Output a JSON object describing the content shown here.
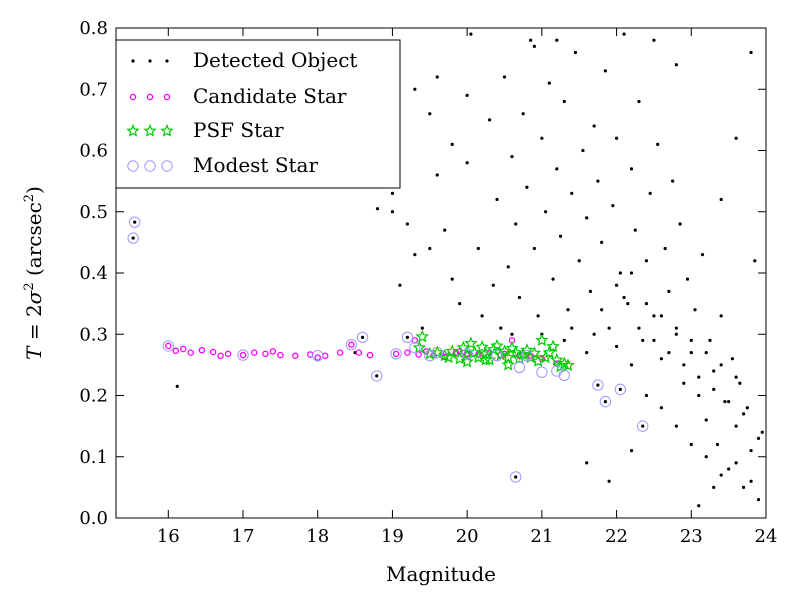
{
  "chart_data": {
    "type": "scatter",
    "xlabel": "Magnitude",
    "ylabel_parts": {
      "lead": "T",
      "eq": " = 2",
      "sigma": "σ",
      "sq": "2",
      "open": " (arcsec",
      "unit_exp": "2",
      "close": ")"
    },
    "xlim": [
      15.3,
      24.0
    ],
    "ylim": [
      0.0,
      0.8
    ],
    "x_ticks": [
      {
        "value": 16,
        "label": "16"
      },
      {
        "value": 17,
        "label": "17"
      },
      {
        "value": 18,
        "label": "18"
      },
      {
        "value": 19,
        "label": "19"
      },
      {
        "value": 20,
        "label": "20"
      },
      {
        "value": 21,
        "label": "21"
      },
      {
        "value": 22,
        "label": "22"
      },
      {
        "value": 23,
        "label": "23"
      },
      {
        "value": 24,
        "label": "24"
      }
    ],
    "y_ticks": [
      {
        "value": 0.0,
        "label": "0.0"
      },
      {
        "value": 0.1,
        "label": "0.1"
      },
      {
        "value": 0.2,
        "label": "0.2"
      },
      {
        "value": 0.3,
        "label": "0.3"
      },
      {
        "value": 0.4,
        "label": "0.4"
      },
      {
        "value": 0.5,
        "label": "0.5"
      },
      {
        "value": 0.6,
        "label": "0.6"
      },
      {
        "value": 0.7,
        "label": "0.7"
      },
      {
        "value": 0.8,
        "label": "0.8"
      }
    ],
    "grid": false,
    "legend_position": "top-left",
    "series": [
      {
        "name": "Detected Object",
        "marker": "dot",
        "color": "#000000",
        "points": [
          [
            15.53,
            0.457
          ],
          [
            15.55,
            0.483
          ],
          [
            16.12,
            0.215
          ],
          [
            18.6,
            0.295
          ],
          [
            18.79,
            0.232
          ],
          [
            18.5,
            0.27
          ],
          [
            19.2,
            0.295
          ],
          [
            20.65,
            0.067
          ],
          [
            21.75,
            0.217
          ],
          [
            21.85,
            0.19
          ],
          [
            22.05,
            0.21
          ],
          [
            22.35,
            0.15
          ],
          [
            18.8,
            0.505
          ],
          [
            19.0,
            0.53
          ],
          [
            19.2,
            0.48
          ],
          [
            19.1,
            0.38
          ],
          [
            19.4,
            0.31
          ],
          [
            19.5,
            0.44
          ],
          [
            19.6,
            0.56
          ],
          [
            19.7,
            0.47
          ],
          [
            19.8,
            0.61
          ],
          [
            19.9,
            0.35
          ],
          [
            20.0,
            0.58
          ],
          [
            20.05,
            0.79
          ],
          [
            20.15,
            0.44
          ],
          [
            20.3,
            0.65
          ],
          [
            20.35,
            0.38
          ],
          [
            20.4,
            0.52
          ],
          [
            20.45,
            0.31
          ],
          [
            20.5,
            0.72
          ],
          [
            20.55,
            0.41
          ],
          [
            20.6,
            0.59
          ],
          [
            20.65,
            0.48
          ],
          [
            20.7,
            0.36
          ],
          [
            20.75,
            0.66
          ],
          [
            20.8,
            0.54
          ],
          [
            20.85,
            0.78
          ],
          [
            20.9,
            0.44
          ],
          [
            20.95,
            0.33
          ],
          [
            21.0,
            0.62
          ],
          [
            21.05,
            0.5
          ],
          [
            21.1,
            0.71
          ],
          [
            21.15,
            0.39
          ],
          [
            21.2,
            0.57
          ],
          [
            21.25,
            0.46
          ],
          [
            21.3,
            0.68
          ],
          [
            21.35,
            0.34
          ],
          [
            21.4,
            0.53
          ],
          [
            21.45,
            0.76
          ],
          [
            21.5,
            0.42
          ],
          [
            21.55,
            0.6
          ],
          [
            21.6,
            0.49
          ],
          [
            21.65,
            0.37
          ],
          [
            21.7,
            0.64
          ],
          [
            21.75,
            0.55
          ],
          [
            21.8,
            0.45
          ],
          [
            21.85,
            0.73
          ],
          [
            21.9,
            0.31
          ],
          [
            21.95,
            0.51
          ],
          [
            22.0,
            0.62
          ],
          [
            22.05,
            0.4
          ],
          [
            22.1,
            0.79
          ],
          [
            22.15,
            0.35
          ],
          [
            22.2,
            0.57
          ],
          [
            22.25,
            0.47
          ],
          [
            22.3,
            0.68
          ],
          [
            22.35,
            0.29
          ],
          [
            22.4,
            0.42
          ],
          [
            22.45,
            0.53
          ],
          [
            22.5,
            0.33
          ],
          [
            22.55,
            0.61
          ],
          [
            22.6,
            0.26
          ],
          [
            22.65,
            0.44
          ],
          [
            22.7,
            0.37
          ],
          [
            22.75,
            0.55
          ],
          [
            22.8,
            0.3
          ],
          [
            22.85,
            0.48
          ],
          [
            22.9,
            0.22
          ],
          [
            22.95,
            0.39
          ],
          [
            23.0,
            0.27
          ],
          [
            23.05,
            0.34
          ],
          [
            23.1,
            0.2
          ],
          [
            23.15,
            0.43
          ],
          [
            23.2,
            0.16
          ],
          [
            23.25,
            0.29
          ],
          [
            23.3,
            0.24
          ],
          [
            23.35,
            0.12
          ],
          [
            23.4,
            0.33
          ],
          [
            23.45,
            0.19
          ],
          [
            23.5,
            0.08
          ],
          [
            23.55,
            0.26
          ],
          [
            23.6,
            0.15
          ],
          [
            23.65,
            0.22
          ],
          [
            23.7,
            0.05
          ],
          [
            23.75,
            0.18
          ],
          [
            23.8,
            0.11
          ],
          [
            23.85,
            0.42
          ],
          [
            23.9,
            0.03
          ],
          [
            23.95,
            0.14
          ],
          [
            23.3,
            0.05
          ],
          [
            23.1,
            0.02
          ],
          [
            22.2,
            0.11
          ],
          [
            21.6,
            0.09
          ],
          [
            21.9,
            0.06
          ],
          [
            23.6,
            0.62
          ],
          [
            23.8,
            0.76
          ],
          [
            23.4,
            0.52
          ],
          [
            22.8,
            0.74
          ],
          [
            22.5,
            0.78
          ],
          [
            21.2,
            0.78
          ],
          [
            20.9,
            0.77
          ],
          [
            19.3,
            0.7
          ],
          [
            19.6,
            0.72
          ],
          [
            20.0,
            0.69
          ],
          [
            19.5,
            0.66
          ],
          [
            19.0,
            0.5
          ],
          [
            19.3,
            0.43
          ],
          [
            19.8,
            0.39
          ],
          [
            20.2,
            0.33
          ],
          [
            20.6,
            0.3
          ],
          [
            21.0,
            0.3
          ],
          [
            21.3,
            0.29
          ],
          [
            21.4,
            0.31
          ],
          [
            21.6,
            0.27
          ],
          [
            21.7,
            0.3
          ],
          [
            22.0,
            0.28
          ],
          [
            22.2,
            0.25
          ],
          [
            22.4,
            0.2
          ],
          [
            22.6,
            0.18
          ],
          [
            22.8,
            0.15
          ],
          [
            23.0,
            0.12
          ],
          [
            23.2,
            0.1
          ],
          [
            23.4,
            0.07
          ],
          [
            23.6,
            0.09
          ],
          [
            23.8,
            0.06
          ],
          [
            22.1,
            0.36
          ],
          [
            22.3,
            0.31
          ],
          [
            22.5,
            0.29
          ],
          [
            22.7,
            0.27
          ],
          [
            22.9,
            0.25
          ],
          [
            23.1,
            0.23
          ],
          [
            23.3,
            0.21
          ],
          [
            23.5,
            0.19
          ],
          [
            23.7,
            0.17
          ],
          [
            23.9,
            0.13
          ],
          [
            21.8,
            0.34
          ],
          [
            22.0,
            0.38
          ],
          [
            22.2,
            0.4
          ],
          [
            22.4,
            0.35
          ],
          [
            22.6,
            0.33
          ],
          [
            22.8,
            0.31
          ],
          [
            23.0,
            0.29
          ],
          [
            23.2,
            0.27
          ],
          [
            23.4,
            0.25
          ],
          [
            23.6,
            0.23
          ]
        ]
      },
      {
        "name": "Candidate Star",
        "marker": "small-circle",
        "color": "#ff00ff",
        "points": [
          [
            16.0,
            0.281
          ],
          [
            16.1,
            0.273
          ],
          [
            16.3,
            0.27
          ],
          [
            16.45,
            0.274
          ],
          [
            16.6,
            0.271
          ],
          [
            16.8,
            0.268
          ],
          [
            17.0,
            0.266
          ],
          [
            17.15,
            0.27
          ],
          [
            17.3,
            0.268
          ],
          [
            17.5,
            0.266
          ],
          [
            17.7,
            0.265
          ],
          [
            17.9,
            0.267
          ],
          [
            18.1,
            0.265
          ],
          [
            18.3,
            0.27
          ],
          [
            18.45,
            0.283
          ],
          [
            18.55,
            0.27
          ],
          [
            19.05,
            0.268
          ],
          [
            19.2,
            0.27
          ],
          [
            19.35,
            0.267
          ],
          [
            19.45,
            0.272
          ],
          [
            19.55,
            0.265
          ],
          [
            19.7,
            0.263
          ],
          [
            19.85,
            0.27
          ],
          [
            20.0,
            0.268
          ],
          [
            20.15,
            0.267
          ],
          [
            20.3,
            0.27
          ],
          [
            20.45,
            0.266
          ],
          [
            20.6,
            0.29
          ],
          [
            20.7,
            0.265
          ],
          [
            20.85,
            0.265
          ],
          [
            16.2,
            0.276
          ],
          [
            16.7,
            0.265
          ],
          [
            17.4,
            0.272
          ],
          [
            18.0,
            0.262
          ],
          [
            18.7,
            0.266
          ],
          [
            19.3,
            0.29
          ],
          [
            19.9,
            0.272
          ],
          [
            20.5,
            0.268
          ],
          [
            21.0,
            0.26
          ],
          [
            21.2,
            0.252
          ]
        ]
      },
      {
        "name": "PSF Star",
        "marker": "star",
        "color": "#00cc00",
        "points": [
          [
            19.36,
            0.278
          ],
          [
            19.4,
            0.296
          ],
          [
            19.5,
            0.268
          ],
          [
            19.6,
            0.27
          ],
          [
            19.7,
            0.265
          ],
          [
            19.8,
            0.272
          ],
          [
            19.9,
            0.26
          ],
          [
            19.95,
            0.278
          ],
          [
            20.0,
            0.265
          ],
          [
            20.05,
            0.285
          ],
          [
            20.1,
            0.27
          ],
          [
            20.15,
            0.262
          ],
          [
            20.2,
            0.279
          ],
          [
            20.25,
            0.268
          ],
          [
            20.3,
            0.258
          ],
          [
            20.35,
            0.275
          ],
          [
            20.4,
            0.281
          ],
          [
            20.45,
            0.266
          ],
          [
            20.5,
            0.272
          ],
          [
            20.55,
            0.262
          ],
          [
            20.6,
            0.277
          ],
          [
            20.65,
            0.27
          ],
          [
            20.7,
            0.26
          ],
          [
            20.75,
            0.267
          ],
          [
            20.8,
            0.274
          ],
          [
            20.85,
            0.262
          ],
          [
            20.9,
            0.269
          ],
          [
            20.95,
            0.256
          ],
          [
            21.0,
            0.29
          ],
          [
            21.05,
            0.262
          ],
          [
            21.1,
            0.27
          ],
          [
            21.15,
            0.28
          ],
          [
            21.2,
            0.258
          ],
          [
            21.3,
            0.252
          ],
          [
            21.35,
            0.249
          ],
          [
            19.75,
            0.262
          ],
          [
            20.0,
            0.255
          ],
          [
            20.25,
            0.258
          ],
          [
            20.55,
            0.25
          ],
          [
            21.25,
            0.247
          ]
        ]
      },
      {
        "name": "Modest Star",
        "marker": "open-circle",
        "color": "#9999ff",
        "points": [
          [
            15.53,
            0.457
          ],
          [
            15.55,
            0.483
          ],
          [
            18.6,
            0.295
          ],
          [
            18.79,
            0.232
          ],
          [
            19.2,
            0.295
          ],
          [
            19.3,
            0.278
          ],
          [
            19.6,
            0.27
          ],
          [
            20.0,
            0.268
          ],
          [
            20.4,
            0.265
          ],
          [
            20.65,
            0.067
          ],
          [
            20.7,
            0.246
          ],
          [
            21.0,
            0.238
          ],
          [
            21.2,
            0.24
          ],
          [
            21.3,
            0.233
          ],
          [
            21.75,
            0.217
          ],
          [
            21.85,
            0.19
          ],
          [
            22.05,
            0.21
          ],
          [
            22.35,
            0.15
          ],
          [
            16.0,
            0.281
          ],
          [
            17.0,
            0.266
          ],
          [
            18.0,
            0.265
          ],
          [
            18.45,
            0.283
          ],
          [
            19.05,
            0.268
          ],
          [
            19.5,
            0.265
          ],
          [
            20.8,
            0.265
          ]
        ]
      }
    ]
  }
}
